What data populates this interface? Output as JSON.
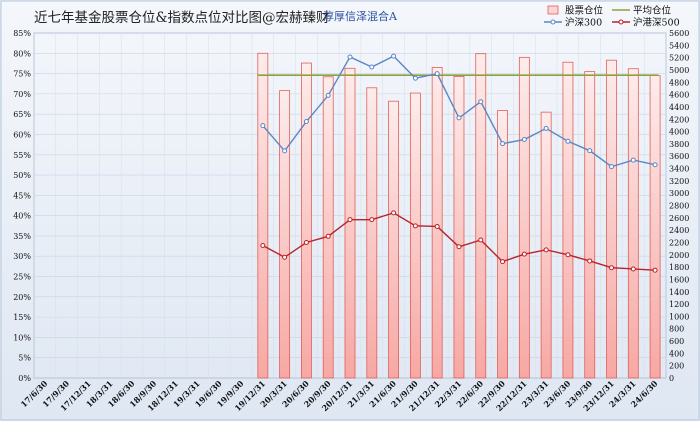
{
  "chart_data": {
    "type": "bar",
    "title": "近七年基金股票仓位&指数点位对比图@宏赫臻财",
    "subtitle": "淳厚信泽混合A",
    "categories": [
      "17/6/30",
      "17/9/30",
      "17/12/31",
      "18/3/31",
      "18/6/30",
      "18/9/30",
      "18/12/31",
      "19/3/31",
      "19/6/30",
      "19/9/30",
      "19/12/31",
      "20/3/31",
      "20/6/30",
      "20/9/30",
      "20/12/31",
      "21/3/31",
      "21/6/30",
      "21/9/30",
      "21/12/31",
      "22/3/31",
      "22/6/30",
      "22/9/30",
      "22/12/31",
      "23/3/31",
      "23/6/30",
      "23/9/30",
      "23/12/31",
      "24/3/31",
      "24/6/30"
    ],
    "left_axis": {
      "min": 0,
      "max": 85,
      "step": 5,
      "format": "percent"
    },
    "right_axis": {
      "min": 0,
      "max": 5600,
      "step": 200
    },
    "series": [
      {
        "name": "股票仓位",
        "kind": "bar",
        "axis": "left",
        "color": "#f08a86",
        "values": [
          null,
          null,
          null,
          null,
          null,
          null,
          null,
          null,
          null,
          null,
          80.0,
          70.8,
          77.6,
          74.2,
          76.3,
          71.5,
          68.2,
          70.2,
          76.5,
          74.3,
          79.9,
          65.9,
          79.0,
          65.5,
          77.8,
          75.5,
          78.3,
          76.2,
          74.5
        ]
      },
      {
        "name": "平均仓位",
        "kind": "line",
        "axis": "left",
        "color": "#8aa23a",
        "values": [
          null,
          null,
          null,
          null,
          null,
          null,
          null,
          null,
          null,
          null,
          74.6,
          74.6,
          74.6,
          74.6,
          74.6,
          74.6,
          74.6,
          74.6,
          74.6,
          74.6,
          74.6,
          74.6,
          74.6,
          74.6,
          74.6,
          74.6,
          74.6,
          74.6,
          74.6
        ]
      },
      {
        "name": "沪深300",
        "kind": "line",
        "axis": "right",
        "color": "#5b86c5",
        "values": [
          null,
          null,
          null,
          null,
          null,
          null,
          null,
          null,
          null,
          null,
          4096,
          3686,
          4163,
          4587,
          5211,
          5048,
          5224,
          4866,
          4940,
          4222,
          4485,
          3804,
          3871,
          4051,
          3842,
          3690,
          3431,
          3537,
          3462
        ]
      },
      {
        "name": "沪港深500",
        "kind": "line",
        "axis": "right",
        "color": "#b8232b",
        "values": [
          null,
          null,
          null,
          null,
          null,
          null,
          null,
          null,
          null,
          null,
          2150,
          1960,
          2200,
          2300,
          2570,
          2570,
          2680,
          2470,
          2460,
          2130,
          2240,
          1890,
          2010,
          2080,
          2000,
          1900,
          1790,
          1770,
          1750
        ]
      }
    ],
    "legend": [
      {
        "name": "股票仓位",
        "kind": "bar",
        "color": "#f08a86"
      },
      {
        "name": "平均仓位",
        "kind": "line",
        "color": "#8aa23a"
      },
      {
        "name": "沪深300",
        "kind": "line",
        "color": "#5b86c5"
      },
      {
        "name": "沪港深500",
        "kind": "line",
        "color": "#b8232b"
      }
    ],
    "legend_position": "top-right",
    "grid": true
  }
}
